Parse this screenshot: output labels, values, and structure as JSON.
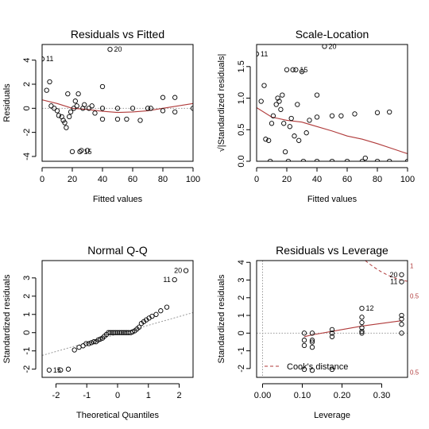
{
  "colors": {
    "smooth": "#b03a3a",
    "reference": "#999999",
    "axis": "#000000"
  },
  "chart_data": [
    {
      "type": "scatter",
      "title": "Residuals vs Fitted",
      "xlabel": "Fitted values",
      "ylabel": "Residuals",
      "xlim": [
        0,
        100
      ],
      "ylim": [
        -4.4,
        5.3
      ],
      "xticks": [
        0,
        20,
        40,
        60,
        80,
        100
      ],
      "yticks": [
        -4,
        -2,
        0,
        2,
        4
      ],
      "points": [
        [
          0,
          4.1
        ],
        [
          3,
          1.5
        ],
        [
          5,
          2.2
        ],
        [
          6,
          0.2
        ],
        [
          8,
          0
        ],
        [
          10,
          -0.2
        ],
        [
          11,
          -0.6
        ],
        [
          13,
          -0.7
        ],
        [
          14,
          -1
        ],
        [
          15,
          -1.2
        ],
        [
          16,
          -1.6
        ],
        [
          17,
          1.2
        ],
        [
          18,
          -0.7
        ],
        [
          19,
          -0.3
        ],
        [
          20,
          -3.6
        ],
        [
          21,
          0
        ],
        [
          22,
          0.6
        ],
        [
          23,
          0.2
        ],
        [
          24,
          1.2
        ],
        [
          25,
          -3.6
        ],
        [
          26,
          -3.5
        ],
        [
          27,
          0
        ],
        [
          28,
          0.3
        ],
        [
          30,
          -3.5
        ],
        [
          31,
          0
        ],
        [
          33,
          0.2
        ],
        [
          35,
          -0.4
        ],
        [
          40,
          1.8
        ],
        [
          40,
          -0.9
        ],
        [
          40,
          0
        ],
        [
          45,
          4.9
        ],
        [
          50,
          0
        ],
        [
          50,
          -0.9
        ],
        [
          56,
          -0.9
        ],
        [
          60,
          0
        ],
        [
          65,
          -1
        ],
        [
          70,
          0
        ],
        [
          72,
          0
        ],
        [
          80,
          0.9
        ],
        [
          80,
          -0.2
        ],
        [
          88,
          0.9
        ],
        [
          88,
          -0.3
        ],
        [
          100,
          0
        ]
      ],
      "smooth": [
        [
          0,
          0.7
        ],
        [
          10,
          0.4
        ],
        [
          20,
          0
        ],
        [
          30,
          -0.1
        ],
        [
          40,
          -0.25
        ],
        [
          50,
          -0.35
        ],
        [
          60,
          -0.3
        ],
        [
          70,
          -0.2
        ],
        [
          80,
          0
        ],
        [
          90,
          0.2
        ],
        [
          100,
          0.4
        ]
      ],
      "labels": [
        {
          "text": "11",
          "x": 0,
          "y": 4.1
        },
        {
          "text": "20",
          "x": 45,
          "y": 4.9
        },
        {
          "text": "15",
          "x": 25,
          "y": -3.6
        }
      ]
    },
    {
      "type": "scatter",
      "title": "Scale-Location",
      "xlabel": "Fitted values",
      "ylabel": "√|Standardized residuals|",
      "xlim": [
        0,
        100
      ],
      "ylim": [
        0,
        1.85
      ],
      "xticks": [
        0,
        20,
        40,
        60,
        80,
        100
      ],
      "yticks": [
        0.0,
        0.5,
        1.0,
        1.5
      ],
      "points": [
        [
          0,
          1.7
        ],
        [
          3,
          0.95
        ],
        [
          5,
          1.2
        ],
        [
          6,
          0.35
        ],
        [
          8,
          0.33
        ],
        [
          9,
          0
        ],
        [
          10,
          0.6
        ],
        [
          11,
          0.72
        ],
        [
          13,
          0.9
        ],
        [
          14,
          1
        ],
        [
          15,
          0.95
        ],
        [
          16,
          0.82
        ],
        [
          17,
          1.05
        ],
        [
          18,
          0.6
        ],
        [
          19,
          0.15
        ],
        [
          20,
          1.45
        ],
        [
          21,
          0
        ],
        [
          22,
          0.55
        ],
        [
          23,
          0.68
        ],
        [
          24,
          1.45
        ],
        [
          25,
          0.4
        ],
        [
          26,
          1.45
        ],
        [
          27,
          0.9
        ],
        [
          28,
          0.33
        ],
        [
          30,
          1.42
        ],
        [
          31,
          0
        ],
        [
          33,
          0.45
        ],
        [
          35,
          0.65
        ],
        [
          40,
          1.05
        ],
        [
          40,
          0.7
        ],
        [
          40,
          0
        ],
        [
          45,
          1.82
        ],
        [
          50,
          0
        ],
        [
          50,
          0.72
        ],
        [
          56,
          0.72
        ],
        [
          60,
          0
        ],
        [
          65,
          0.75
        ],
        [
          70,
          0
        ],
        [
          72,
          0.05
        ],
        [
          80,
          0.77
        ],
        [
          80,
          0
        ],
        [
          88,
          0.78
        ],
        [
          88,
          0
        ],
        [
          100,
          0
        ]
      ],
      "smooth": [
        [
          0,
          0.85
        ],
        [
          10,
          0.7
        ],
        [
          20,
          0.65
        ],
        [
          30,
          0.62
        ],
        [
          40,
          0.55
        ],
        [
          50,
          0.48
        ],
        [
          60,
          0.4
        ],
        [
          70,
          0.35
        ],
        [
          80,
          0.28
        ],
        [
          90,
          0.2
        ],
        [
          100,
          0.12
        ]
      ],
      "labels": [
        {
          "text": "11",
          "x": 0,
          "y": 1.7
        },
        {
          "text": "20",
          "x": 45,
          "y": 1.82
        },
        {
          "text": "15",
          "x": 26,
          "y": 1.45
        }
      ]
    },
    {
      "type": "scatter",
      "title": "Normal Q-Q",
      "xlabel": "Theoretical Quantiles",
      "ylabel": "Standardized residuals",
      "xlim": [
        -2.45,
        2.45
      ],
      "ylim": [
        -2.45,
        3.95
      ],
      "xticks": [
        -2,
        -1,
        0,
        1,
        2
      ],
      "yticks": [
        -2,
        -1,
        0,
        1,
        2,
        3
      ],
      "points": [
        [
          -2.22,
          -2.05
        ],
        [
          -1.85,
          -2.05
        ],
        [
          -1.6,
          -2.0
        ],
        [
          -1.4,
          -0.95
        ],
        [
          -1.25,
          -0.8
        ],
        [
          -1.12,
          -0.72
        ],
        [
          -1.02,
          -0.6
        ],
        [
          -0.93,
          -0.6
        ],
        [
          -0.85,
          -0.55
        ],
        [
          -0.77,
          -0.5
        ],
        [
          -0.7,
          -0.5
        ],
        [
          -0.63,
          -0.4
        ],
        [
          -0.56,
          -0.35
        ],
        [
          -0.49,
          -0.3
        ],
        [
          -0.43,
          -0.2
        ],
        [
          -0.36,
          -0.1
        ],
        [
          -0.3,
          0
        ],
        [
          -0.24,
          0
        ],
        [
          -0.18,
          0
        ],
        [
          -0.12,
          0
        ],
        [
          -0.06,
          0
        ],
        [
          0,
          0
        ],
        [
          0.06,
          0
        ],
        [
          0.12,
          0
        ],
        [
          0.18,
          0
        ],
        [
          0.24,
          0
        ],
        [
          0.3,
          0
        ],
        [
          0.36,
          0
        ],
        [
          0.43,
          0
        ],
        [
          0.49,
          0.05
        ],
        [
          0.56,
          0.1
        ],
        [
          0.63,
          0.2
        ],
        [
          0.7,
          0.3
        ],
        [
          0.77,
          0.5
        ],
        [
          0.85,
          0.6
        ],
        [
          0.93,
          0.7
        ],
        [
          1.02,
          0.8
        ],
        [
          1.12,
          0.9
        ],
        [
          1.25,
          1.0
        ],
        [
          1.4,
          1.2
        ],
        [
          1.6,
          1.4
        ],
        [
          1.85,
          2.9
        ],
        [
          2.22,
          3.4
        ]
      ],
      "refline": [
        [
          -2.45,
          -1.25
        ],
        [
          2.45,
          1.1
        ]
      ],
      "labels": [
        {
          "text": "15",
          "x": -2.22,
          "y": -2.05
        },
        {
          "text": "11",
          "x": 1.85,
          "y": 2.9
        },
        {
          "text": "20",
          "x": 2.22,
          "y": 3.4
        }
      ]
    },
    {
      "type": "scatter",
      "title": "Residuals vs Leverage",
      "xlabel": "Leverage",
      "ylabel": "Standardized residuals",
      "xlim": [
        -0.015,
        0.365
      ],
      "ylim": [
        -2.5,
        4.1
      ],
      "xticks": [
        0.0,
        0.1,
        0.2,
        0.3
      ],
      "xtick_labels": [
        "0.00",
        "0.10",
        "0.20",
        "0.30"
      ],
      "yticks": [
        -2,
        -1,
        0,
        1,
        2,
        3,
        4
      ],
      "points": [
        [
          0.105,
          -0.7
        ],
        [
          0.105,
          -0.4
        ],
        [
          0.105,
          0
        ],
        [
          0.105,
          -2.05
        ],
        [
          0.125,
          -0.8
        ],
        [
          0.125,
          -0.5
        ],
        [
          0.125,
          -0.4
        ],
        [
          0.125,
          0
        ],
        [
          0.125,
          -2.1
        ],
        [
          0.175,
          0.2
        ],
        [
          0.175,
          -0.2
        ],
        [
          0.175,
          0
        ],
        [
          0.175,
          -2.05
        ],
        [
          0.25,
          1.4
        ],
        [
          0.25,
          0.9
        ],
        [
          0.25,
          0.6
        ],
        [
          0.25,
          0.3
        ],
        [
          0.25,
          0
        ],
        [
          0.25,
          0.1
        ],
        [
          0.35,
          3.3
        ],
        [
          0.35,
          2.9
        ],
        [
          0.35,
          1.0
        ],
        [
          0.35,
          0.8
        ],
        [
          0.35,
          0.5
        ],
        [
          0.35,
          0
        ]
      ],
      "smooth": [
        [
          0.105,
          -0.2
        ],
        [
          0.125,
          -0.1
        ],
        [
          0.175,
          0.1
        ],
        [
          0.25,
          0.4
        ],
        [
          0.35,
          0.7
        ]
      ],
      "labels": [
        {
          "text": "12",
          "x": 0.25,
          "y": 1.4
        },
        {
          "text": "20",
          "x": 0.35,
          "y": 3.3
        },
        {
          "text": "11",
          "x": 0.35,
          "y": 2.9
        }
      ],
      "contour_labels": [
        {
          "text": "1",
          "y": 3.8
        },
        {
          "text": "0.5",
          "y": 2.1
        },
        {
          "text": "0.5",
          "y": -2.2
        }
      ],
      "legend": {
        "label": "Cook's distance",
        "position": "bottom-left"
      }
    }
  ]
}
